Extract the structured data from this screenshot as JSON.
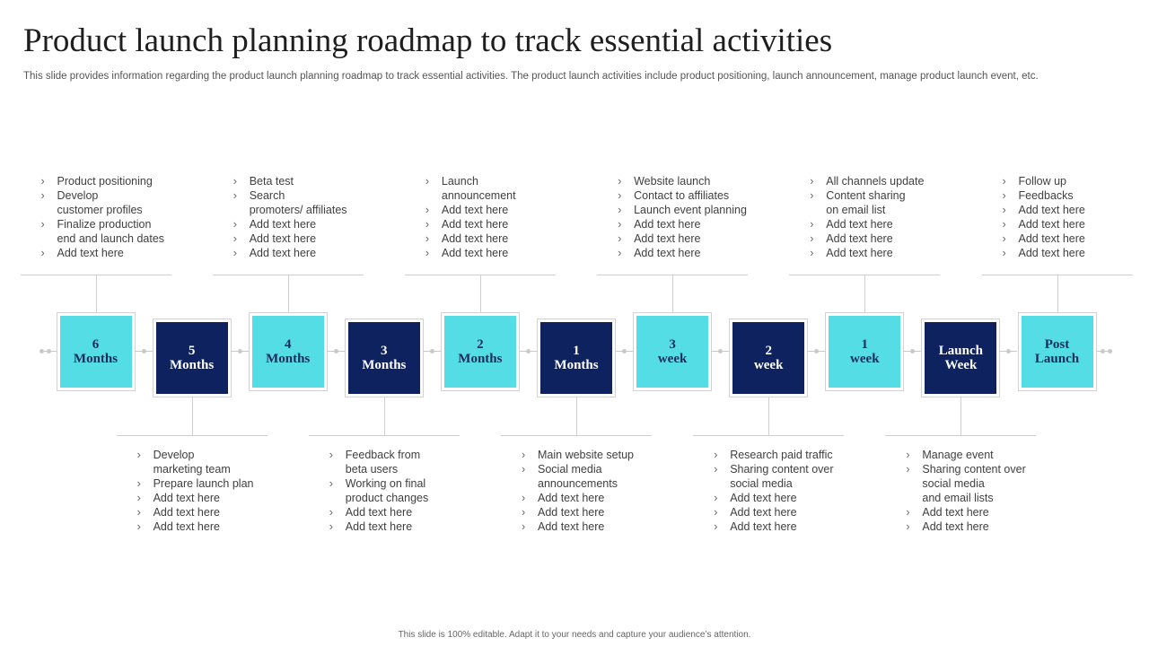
{
  "title": "Product launch planning roadmap to track essential activities",
  "subtitle": "This slide provides information regarding the product launch planning roadmap to track essential activities. The product launch activities include product positioning, launch announcement, manage product launch event, etc.",
  "footer": "This slide is 100% editable. Adapt it to your needs and capture your audience’s attention.",
  "colors": {
    "light_box": "#55dde6",
    "dark_box": "#0e2260",
    "connector": "#cfcfcf"
  },
  "bullet_icon": "chevron-right",
  "stages": [
    {
      "label": "6\nMonths",
      "tone": "light",
      "position": "top",
      "items": [
        "Product positioning",
        "Develop\ncustomer profiles",
        "Finalize production\nend and launch dates",
        "Add text here"
      ]
    },
    {
      "label": "5\nMonths",
      "tone": "dark",
      "position": "bottom",
      "items": [
        "Develop\nmarketing team",
        "Prepare launch plan",
        "Add text here",
        "Add text here",
        "Add text here"
      ]
    },
    {
      "label": "4\nMonths",
      "tone": "light",
      "position": "top",
      "items": [
        "Beta test",
        "Search\npromoters/ affiliates",
        "Add text here",
        "Add text here",
        "Add text here"
      ]
    },
    {
      "label": "3\nMonths",
      "tone": "dark",
      "position": "bottom",
      "items": [
        "Feedback from\nbeta users",
        "Working on final\nproduct changes",
        "Add text here",
        "Add text here"
      ]
    },
    {
      "label": "2\nMonths",
      "tone": "light",
      "position": "top",
      "items": [
        "Launch\nannouncement",
        "Add text here",
        "Add text here",
        "Add text here",
        "Add text here"
      ]
    },
    {
      "label": "1\nMonths",
      "tone": "dark",
      "position": "bottom",
      "items": [
        "Main website setup",
        "Social media\nannouncements",
        "Add text here",
        "Add text here",
        "Add text here"
      ]
    },
    {
      "label": "3\nweek",
      "tone": "light",
      "position": "top",
      "items": [
        "Website launch",
        "Contact to affiliates",
        "Launch event planning",
        "Add text here",
        "Add text here",
        "Add text here"
      ]
    },
    {
      "label": "2\nweek",
      "tone": "dark",
      "position": "bottom",
      "items": [
        "Research paid traffic",
        "Sharing content over\nsocial media",
        "Add text here",
        "Add text here",
        "Add text here"
      ]
    },
    {
      "label": "1\nweek",
      "tone": "light",
      "position": "top",
      "items": [
        "All channels update",
        "Content sharing\non email list",
        "Add text here",
        "Add text here",
        "Add text here"
      ]
    },
    {
      "label": "Launch\nWeek",
      "tone": "dark",
      "position": "bottom",
      "items": [
        "Manage event",
        "Sharing content over\nsocial media\nand email lists",
        "Add text here",
        "Add text here"
      ]
    },
    {
      "label": "Post\nLaunch",
      "tone": "light",
      "position": "top",
      "items": [
        "Follow up",
        "Feedbacks",
        "Add text here",
        "Add text here",
        "Add text here",
        "Add text here"
      ]
    }
  ]
}
